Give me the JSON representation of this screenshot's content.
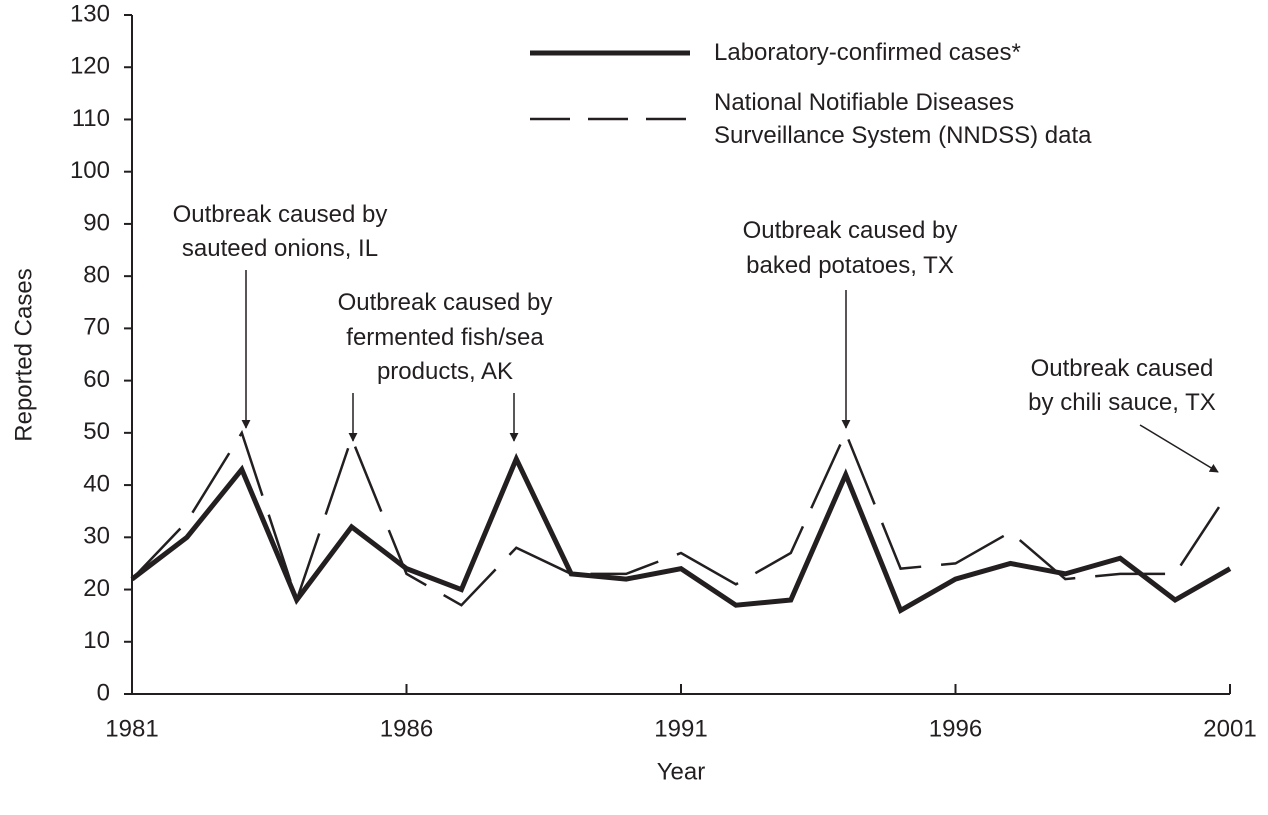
{
  "chart_data": {
    "type": "line",
    "x_label": "Year",
    "y_label": "Reported Cases",
    "x": [
      1981,
      1982,
      1983,
      1984,
      1985,
      1986,
      1987,
      1988,
      1989,
      1990,
      1991,
      1992,
      1993,
      1994,
      1995,
      1996,
      1997,
      1998,
      1999,
      2000,
      2001
    ],
    "series": [
      {
        "name": "Laboratory-confirmed cases*",
        "color": "#231f20",
        "style": "solid",
        "values": [
          22,
          30,
          43,
          18,
          32,
          24,
          20,
          45,
          23,
          22,
          24,
          17,
          18,
          42,
          16,
          22,
          25,
          23,
          26,
          18,
          24
        ]
      },
      {
        "name": "National Notifiable Diseases Surveillance System (NNDSS) data",
        "color": "#231f20",
        "style": "dashed",
        "values": [
          22,
          33,
          50,
          18,
          49,
          23,
          17,
          28,
          23,
          23,
          27,
          21,
          27,
          50,
          24,
          25,
          31,
          22,
          23,
          23,
          39
        ]
      }
    ],
    "xlim": [
      1981,
      2001
    ],
    "xticks": [
      1981,
      1986,
      1991,
      1996,
      2001
    ],
    "ylim": [
      0,
      130
    ],
    "yticks": [
      0,
      10,
      20,
      30,
      40,
      50,
      60,
      70,
      80,
      90,
      100,
      110,
      120,
      130
    ],
    "annotations": [
      {
        "lines": [
          "Outbreak caused by",
          "sauteed onions, IL"
        ]
      },
      {
        "lines": [
          "Outbreak caused by",
          "fermented fish/sea",
          "products, AK"
        ]
      },
      {
        "lines": [
          "Outbreak caused by",
          "baked potatoes, TX"
        ]
      },
      {
        "lines": [
          "Outbreak caused",
          "by chili sauce, TX"
        ]
      }
    ]
  }
}
